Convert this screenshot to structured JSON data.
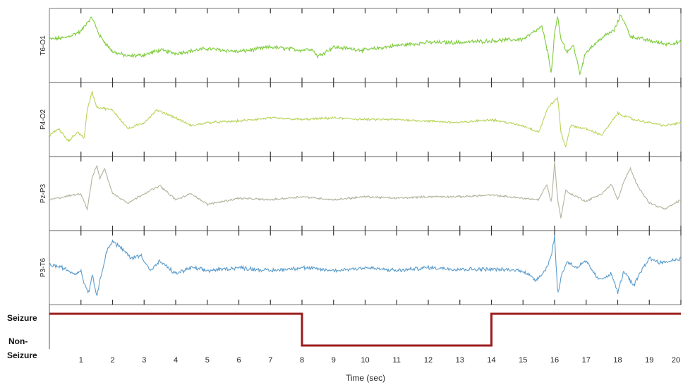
{
  "chart_data": {
    "type": "line",
    "xlabel": "Time (sec)",
    "xlim": [
      0,
      20
    ],
    "x_ticks": [
      1,
      2,
      3,
      4,
      5,
      6,
      7,
      8,
      9,
      10,
      11,
      12,
      13,
      14,
      15,
      16,
      17,
      18,
      19,
      20
    ],
    "x_tick_labels": [
      "1",
      "2",
      "3",
      "4",
      "5",
      "6",
      "7",
      "8",
      "9",
      "10",
      "11",
      "12",
      "13",
      "14",
      "15",
      "16",
      "17",
      "18",
      "19",
      "20"
    ],
    "channels": [
      {
        "name": "T6-O1",
        "color": "#7dcc3a",
        "noise": 0.05,
        "x": [
          0,
          0.5,
          1.0,
          1.2,
          1.35,
          1.6,
          2.0,
          2.5,
          3.0,
          3.5,
          4.0,
          5.0,
          6.0,
          7.0,
          8.0,
          8.3,
          8.5,
          9.0,
          10.0,
          11.0,
          12.0,
          13.0,
          14.0,
          15.0,
          15.6,
          15.8,
          15.9,
          16.0,
          16.1,
          16.2,
          16.4,
          16.6,
          16.8,
          17.0,
          17.5,
          17.9,
          18.1,
          18.4,
          19.0,
          19.5,
          20.0
        ],
        "y": [
          0.2,
          0.25,
          0.45,
          0.75,
          0.9,
          0.3,
          -0.2,
          -0.35,
          -0.3,
          -0.15,
          -0.25,
          -0.1,
          -0.2,
          -0.05,
          -0.15,
          -0.1,
          -0.35,
          -0.05,
          -0.15,
          0.0,
          0.1,
          0.1,
          0.15,
          0.2,
          0.6,
          -0.3,
          -0.9,
          0.4,
          0.9,
          0.2,
          -0.2,
          0.0,
          -0.9,
          -0.2,
          0.25,
          0.5,
          1.0,
          0.3,
          0.15,
          0.05,
          0.1
        ]
      },
      {
        "name": "P4-O2",
        "color": "#b9d45a",
        "noise": 0.03,
        "x": [
          0,
          0.3,
          0.6,
          0.9,
          1.1,
          1.2,
          1.35,
          1.5,
          2.0,
          2.5,
          3.0,
          3.4,
          3.8,
          4.5,
          5.0,
          6.0,
          7.0,
          8.0,
          9.0,
          10.0,
          11.0,
          12.0,
          13.0,
          14.0,
          15.0,
          15.5,
          15.8,
          16.1,
          16.2,
          16.35,
          16.5,
          17.0,
          17.5,
          18.0,
          18.5,
          19.0,
          19.5,
          20.0
        ],
        "y": [
          -0.5,
          -0.3,
          -0.7,
          -0.4,
          -0.6,
          0.3,
          0.9,
          0.4,
          0.3,
          -0.3,
          -0.1,
          0.3,
          0.15,
          -0.2,
          -0.1,
          -0.05,
          0.05,
          0.0,
          0.05,
          0.0,
          0.0,
          -0.05,
          -0.1,
          0.0,
          -0.2,
          -0.4,
          0.4,
          0.7,
          -0.4,
          -0.9,
          -0.2,
          -0.3,
          -0.5,
          0.2,
          0.0,
          -0.1,
          -0.2,
          -0.1
        ]
      },
      {
        "name": "Pz-P3",
        "color": "#b3b39d",
        "noise": 0.025,
        "x": [
          0,
          0.5,
          1.0,
          1.2,
          1.35,
          1.5,
          1.6,
          1.75,
          2.0,
          2.5,
          3.0,
          3.5,
          4.0,
          4.5,
          5.0,
          6.0,
          7.0,
          8.0,
          9.0,
          10.0,
          11.0,
          12.0,
          13.0,
          14.0,
          15.0,
          15.5,
          15.75,
          15.9,
          16.0,
          16.1,
          16.2,
          16.35,
          16.5,
          17.0,
          17.5,
          17.8,
          18.0,
          18.2,
          18.4,
          18.6,
          19.0,
          19.5,
          20.0
        ],
        "y": [
          -0.2,
          -0.1,
          0.0,
          -0.5,
          0.5,
          0.9,
          0.5,
          0.8,
          0.0,
          -0.3,
          0.0,
          0.25,
          -0.2,
          0.0,
          -0.35,
          -0.15,
          -0.2,
          -0.1,
          -0.2,
          -0.1,
          -0.15,
          -0.1,
          -0.1,
          -0.05,
          -0.15,
          -0.2,
          0.3,
          -0.3,
          1.0,
          -0.2,
          -0.8,
          0.1,
          0.0,
          -0.25,
          0.0,
          0.3,
          -0.2,
          0.4,
          0.8,
          0.3,
          -0.3,
          -0.5,
          -0.2
        ]
      },
      {
        "name": "P3-T6",
        "color": "#5b9ccc",
        "noise": 0.05,
        "x": [
          0,
          0.4,
          0.8,
          1.0,
          1.1,
          1.25,
          1.35,
          1.5,
          1.8,
          2.0,
          2.3,
          2.6,
          2.9,
          3.2,
          3.5,
          4.0,
          4.5,
          5.0,
          6.0,
          7.0,
          8.0,
          9.0,
          10.0,
          11.0,
          12.0,
          13.0,
          14.0,
          15.0,
          15.4,
          15.7,
          15.9,
          16.0,
          16.1,
          16.2,
          16.4,
          16.7,
          17.0,
          17.4,
          17.8,
          18.0,
          18.2,
          18.5,
          18.8,
          19.0,
          19.4,
          19.8,
          20.0
        ],
        "y": [
          0.1,
          0.0,
          -0.2,
          -0.1,
          -0.5,
          -0.8,
          -0.2,
          -0.9,
          0.5,
          0.85,
          0.6,
          0.3,
          0.4,
          -0.1,
          0.2,
          -0.2,
          0.0,
          -0.1,
          0.0,
          -0.1,
          0.0,
          -0.1,
          0.0,
          -0.1,
          0.0,
          -0.05,
          -0.05,
          -0.1,
          -0.4,
          -0.1,
          0.4,
          1.0,
          -0.9,
          -0.3,
          0.2,
          0.0,
          0.2,
          -0.4,
          -0.2,
          -0.8,
          -0.1,
          -0.6,
          0.0,
          0.3,
          0.15,
          0.25,
          0.3
        ]
      }
    ],
    "state": {
      "labels": [
        "Seizure",
        "Non-",
        "Seizure"
      ],
      "color": "#9b1c1c",
      "x": [
        0,
        8,
        8,
        14,
        14,
        20
      ],
      "y": [
        1,
        1,
        0,
        0,
        1,
        1
      ]
    }
  }
}
